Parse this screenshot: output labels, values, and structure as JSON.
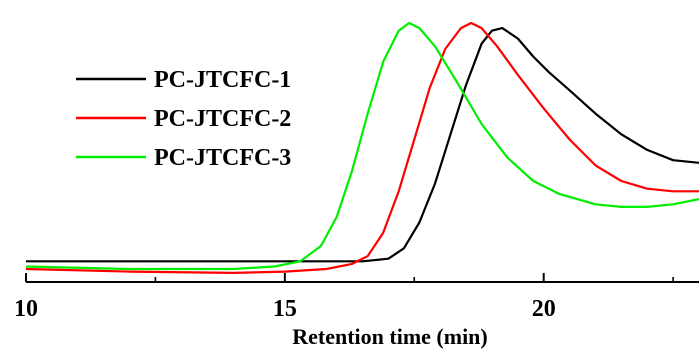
{
  "chart_data": {
    "type": "line",
    "title": "",
    "xlabel": "Retention time (min)",
    "ylabel": "",
    "xlim": [
      10,
      23
    ],
    "ylim": [
      -0.05,
      1.0
    ],
    "x_ticks": [
      10,
      15,
      20
    ],
    "grid": false,
    "legend_position": "top-left",
    "series": [
      {
        "name": "PC-JTCFC-1",
        "color": "#000000",
        "points": [
          [
            10.0,
            0.03
          ],
          [
            12.0,
            0.03
          ],
          [
            14.0,
            0.03
          ],
          [
            15.0,
            0.03
          ],
          [
            16.0,
            0.03
          ],
          [
            16.5,
            0.03
          ],
          [
            17.0,
            0.04
          ],
          [
            17.3,
            0.08
          ],
          [
            17.6,
            0.18
          ],
          [
            17.9,
            0.33
          ],
          [
            18.2,
            0.52
          ],
          [
            18.5,
            0.71
          ],
          [
            18.8,
            0.87
          ],
          [
            19.0,
            0.92
          ],
          [
            19.2,
            0.93
          ],
          [
            19.5,
            0.89
          ],
          [
            19.8,
            0.82
          ],
          [
            20.1,
            0.76
          ],
          [
            20.5,
            0.69
          ],
          [
            21.0,
            0.6
          ],
          [
            21.5,
            0.52
          ],
          [
            22.0,
            0.46
          ],
          [
            22.5,
            0.42
          ],
          [
            23.0,
            0.41
          ]
        ]
      },
      {
        "name": "PC-JTCFC-2",
        "color": "#ff0000",
        "points": [
          [
            10.0,
            0.0
          ],
          [
            12.0,
            -0.01
          ],
          [
            14.0,
            -0.015
          ],
          [
            15.0,
            -0.01
          ],
          [
            15.8,
            0.0
          ],
          [
            16.3,
            0.02
          ],
          [
            16.6,
            0.05
          ],
          [
            16.9,
            0.14
          ],
          [
            17.2,
            0.3
          ],
          [
            17.5,
            0.5
          ],
          [
            17.8,
            0.7
          ],
          [
            18.1,
            0.85
          ],
          [
            18.4,
            0.93
          ],
          [
            18.6,
            0.95
          ],
          [
            18.8,
            0.93
          ],
          [
            19.1,
            0.86
          ],
          [
            19.5,
            0.75
          ],
          [
            20.0,
            0.62
          ],
          [
            20.5,
            0.5
          ],
          [
            21.0,
            0.4
          ],
          [
            21.5,
            0.34
          ],
          [
            22.0,
            0.31
          ],
          [
            22.5,
            0.3
          ],
          [
            23.0,
            0.3
          ]
        ]
      },
      {
        "name": "PC-JTCFC-3",
        "color": "#00ee00",
        "points": [
          [
            10.0,
            0.01
          ],
          [
            12.0,
            0.0
          ],
          [
            14.0,
            0.0
          ],
          [
            14.8,
            0.01
          ],
          [
            15.3,
            0.03
          ],
          [
            15.7,
            0.09
          ],
          [
            16.0,
            0.2
          ],
          [
            16.3,
            0.38
          ],
          [
            16.6,
            0.6
          ],
          [
            16.9,
            0.8
          ],
          [
            17.2,
            0.92
          ],
          [
            17.4,
            0.95
          ],
          [
            17.6,
            0.93
          ],
          [
            17.9,
            0.86
          ],
          [
            18.3,
            0.73
          ],
          [
            18.8,
            0.56
          ],
          [
            19.3,
            0.43
          ],
          [
            19.8,
            0.34
          ],
          [
            20.3,
            0.29
          ],
          [
            21.0,
            0.25
          ],
          [
            21.5,
            0.24
          ],
          [
            22.0,
            0.24
          ],
          [
            22.5,
            0.25
          ],
          [
            23.0,
            0.27
          ]
        ]
      }
    ]
  }
}
